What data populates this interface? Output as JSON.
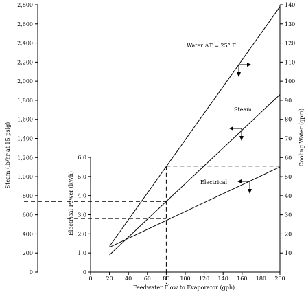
{
  "chart_data": {
    "type": "line",
    "title": "",
    "xlabel": "Feedwater Flow to Evaporator (gph)",
    "xlim": [
      0,
      200
    ],
    "xticks": [
      0,
      20,
      40,
      60,
      80,
      100,
      120,
      140,
      160,
      180,
      200
    ],
    "axes": {
      "steam": {
        "label": "Steam (lb/hr at 15 psig)",
        "ylim": [
          0,
          2800
        ],
        "ticks": [
          0,
          200,
          400,
          600,
          800,
          1000,
          1200,
          1400,
          1600,
          1800,
          2000,
          2200,
          2400,
          2600,
          2800
        ],
        "tick_labels": [
          "0",
          "200",
          "400",
          "600",
          "800",
          "1,000",
          "1,200",
          "1,400",
          "1,600",
          "1,800",
          "2,000",
          "2,200",
          "2,400",
          "2,600",
          "2,800"
        ]
      },
      "electrical": {
        "label": "Electrical Power (kWh)",
        "ylim": [
          0,
          6.0
        ],
        "ticks": [
          0,
          1,
          2,
          3,
          4,
          5,
          6
        ],
        "tick_labels": [
          "0",
          "1.0",
          "2.0",
          "3.0",
          "4.0",
          "5.0",
          "6.0"
        ]
      },
      "water": {
        "label": "Cooling Water (gpm)",
        "ylim": [
          0,
          140
        ],
        "ticks": [
          10,
          20,
          30,
          40,
          50,
          60,
          70,
          80,
          90,
          100,
          110,
          120,
          130,
          140
        ],
        "tick_labels": [
          "10",
          "20",
          "30",
          "40",
          "50",
          "60",
          "70",
          "80",
          "90",
          "100",
          "110",
          "120",
          "130",
          "140"
        ]
      }
    },
    "series": [
      {
        "name": "Water ΔT = 25° F",
        "axis": "water",
        "x": [
          20,
          200
        ],
        "y": [
          13.5,
          139
        ]
      },
      {
        "name": "Steam",
        "axis": "water",
        "x": [
          20,
          200
        ],
        "y": [
          9,
          93
        ]
      },
      {
        "name": "Electrical",
        "axis": "electrical",
        "x": [
          20,
          200
        ],
        "y": [
          1.3,
          5.5
        ]
      }
    ],
    "guides": {
      "x": 80,
      "water": 55.5,
      "steam_lbhr": 740,
      "electrical_kwh": [
        2.8,
        3.6
      ]
    },
    "grid": false,
    "legend": "none"
  }
}
